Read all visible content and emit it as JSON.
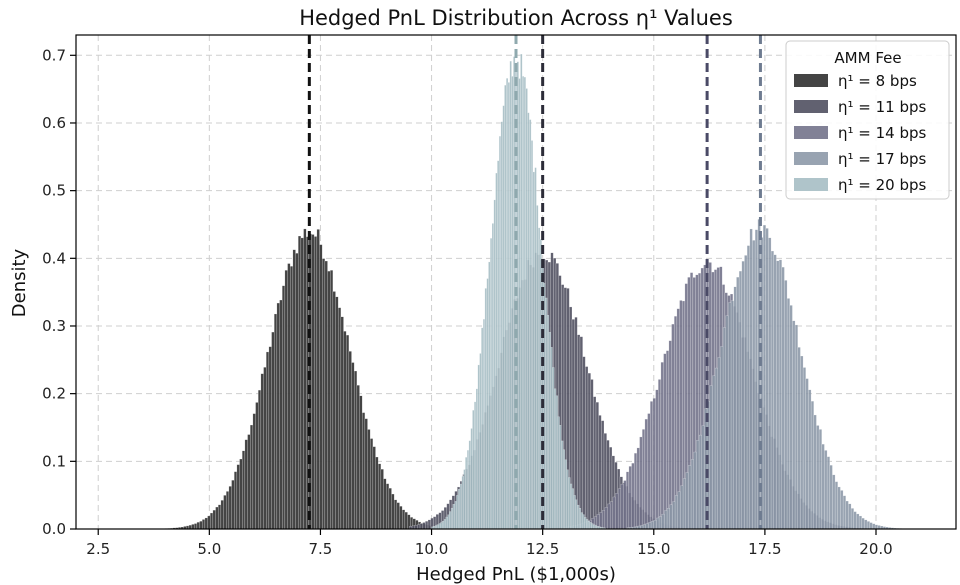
{
  "chart_data": {
    "type": "histogram",
    "title": "Hedged PnL Distribution Across η¹ Values",
    "xlabel": "Hedged PnL ($1,000s)",
    "ylabel": "Density",
    "xlim": [
      2.0,
      21.8
    ],
    "ylim": [
      0.0,
      0.73
    ],
    "xticks": [
      2.5,
      5.0,
      7.5,
      10.0,
      12.5,
      15.0,
      17.5,
      20.0
    ],
    "xtick_labels": [
      "2.5",
      "5.0",
      "7.5",
      "10.0",
      "12.5",
      "15.0",
      "17.5",
      "20.0"
    ],
    "yticks": [
      0.0,
      0.1,
      0.2,
      0.3,
      0.4,
      0.5,
      0.6,
      0.7
    ],
    "ytick_labels": [
      "0.0",
      "0.1",
      "0.2",
      "0.3",
      "0.4",
      "0.5",
      "0.6",
      "0.7"
    ],
    "grid": true,
    "legend_title": "AMM Fee",
    "legend_position": "top-right",
    "series": [
      {
        "name": "η¹ = 8 bps",
        "color": "#3a3a3a",
        "opacity": 0.95,
        "mean": 7.25,
        "peak_density": 0.44,
        "range": [
          4.0,
          10.6
        ],
        "bin_width": 0.06
      },
      {
        "name": "η¹ = 11 bps",
        "color": "#505060",
        "opacity": 0.9,
        "mean": 12.5,
        "peak_density": 0.41,
        "range": [
          9.5,
          15.6
        ],
        "bin_width": 0.06
      },
      {
        "name": "η¹ = 14 bps",
        "color": "#6f6f88",
        "opacity": 0.88,
        "mean": 16.2,
        "peak_density": 0.395,
        "range": [
          13.0,
          19.6
        ],
        "bin_width": 0.06
      },
      {
        "name": "η¹ = 17 bps",
        "color": "#8a96a6",
        "opacity": 0.88,
        "mean": 17.4,
        "peak_density": 0.445,
        "range": [
          14.4,
          20.6
        ],
        "bin_width": 0.06
      },
      {
        "name": "η¹ = 20 bps",
        "color": "#a6bec4",
        "opacity": 0.9,
        "mean": 11.9,
        "peak_density": 0.695,
        "range": [
          10.0,
          13.9
        ],
        "bin_width": 0.04
      }
    ],
    "mean_lines": [
      {
        "series": "η¹ = 8 bps",
        "x": 7.25,
        "color": "#111111"
      },
      {
        "series": "η¹ = 11 bps",
        "x": 12.5,
        "color": "#2c2c38"
      },
      {
        "series": "η¹ = 14 bps",
        "x": 16.2,
        "color": "#4a4a66"
      },
      {
        "series": "η¹ = 17 bps",
        "x": 17.4,
        "color": "#6e7b90"
      },
      {
        "series": "η¹ = 20 bps",
        "x": 11.9,
        "color": "#8fa9ae"
      }
    ]
  }
}
